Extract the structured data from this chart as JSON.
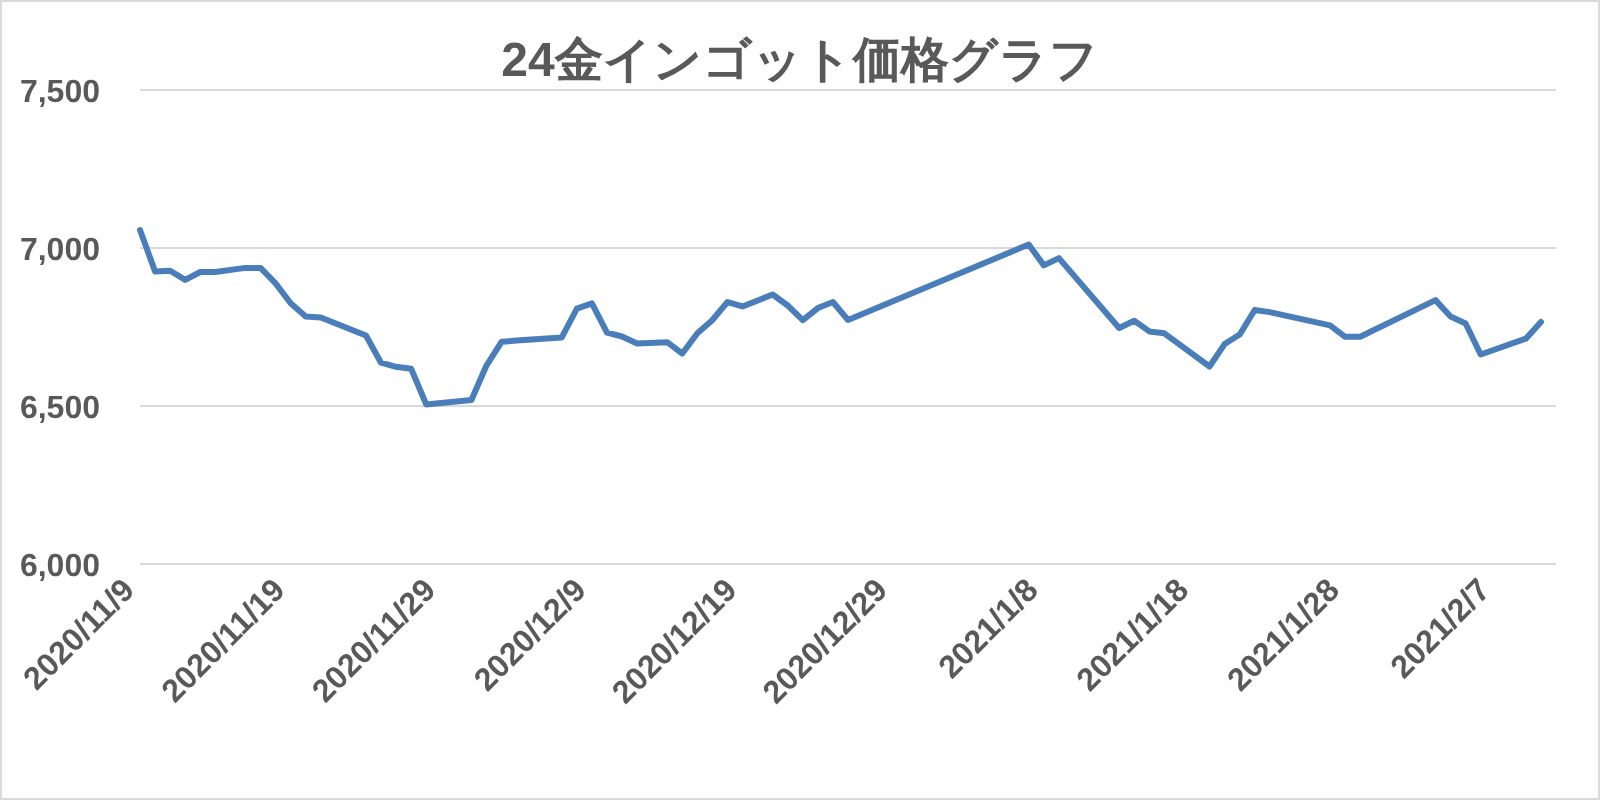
{
  "chart_data": {
    "type": "line",
    "title": "24金インゴット価格グラフ",
    "x": [
      "2020-11-09",
      "2020-11-10",
      "2020-11-11",
      "2020-11-12",
      "2020-11-13",
      "2020-11-14",
      "2020-11-16",
      "2020-11-17",
      "2020-11-18",
      "2020-11-19",
      "2020-11-20",
      "2020-11-21",
      "2020-11-24",
      "2020-11-25",
      "2020-11-26",
      "2020-11-27",
      "2020-11-28",
      "2020-12-01",
      "2020-12-02",
      "2020-12-03",
      "2020-12-04",
      "2020-12-07",
      "2020-12-08",
      "2020-12-09",
      "2020-12-10",
      "2020-12-11",
      "2020-12-12",
      "2020-12-14",
      "2020-12-15",
      "2020-12-16",
      "2020-12-17",
      "2020-12-18",
      "2020-12-19",
      "2020-12-21",
      "2020-12-22",
      "2020-12-23",
      "2020-12-24",
      "2020-12-25",
      "2020-12-26",
      "2021-01-07",
      "2021-01-08",
      "2021-01-09",
      "2021-01-13",
      "2021-01-14",
      "2021-01-15",
      "2021-01-16",
      "2021-01-19",
      "2021-01-20",
      "2021-01-21",
      "2021-01-22",
      "2021-01-23",
      "2021-01-27",
      "2021-01-28",
      "2021-01-29",
      "2021-02-03",
      "2021-02-04",
      "2021-02-05",
      "2021-02-06",
      "2021-02-09",
      "2021-02-10"
    ],
    "series": [
      {
        "color": "#4a7ebb",
        "values": [
          7057,
          6926,
          6928,
          6899,
          6924,
          6924,
          6937,
          6937,
          6888,
          6825,
          6783,
          6780,
          6723,
          6637,
          6624,
          6618,
          6505,
          6519,
          6628,
          6703,
          6707,
          6717,
          6808,
          6825,
          6732,
          6720,
          6698,
          6702,
          6666,
          6730,
          6772,
          6829,
          6815,
          6853,
          6818,
          6772,
          6810,
          6829,
          6772,
          7011,
          6945,
          6968,
          6747,
          6770,
          6736,
          6730,
          6625,
          6696,
          6726,
          6804,
          6797,
          6755,
          6719,
          6719,
          6835,
          6783,
          6761,
          6663,
          6713,
          6766
        ]
      }
    ],
    "xlim": [
      "2020-11-09",
      "2021-02-11"
    ],
    "xticks": [
      {
        "value": "2020-11-09",
        "label": "2020/11/9"
      },
      {
        "value": "2020-11-19",
        "label": "2020/11/19"
      },
      {
        "value": "2020-11-29",
        "label": "2020/11/29"
      },
      {
        "value": "2020-12-09",
        "label": "2020/12/9"
      },
      {
        "value": "2020-12-19",
        "label": "2020/12/19"
      },
      {
        "value": "2020-12-29",
        "label": "2020/12/29"
      },
      {
        "value": "2021-01-08",
        "label": "2021/1/8"
      },
      {
        "value": "2021-01-18",
        "label": "2021/1/18"
      },
      {
        "value": "2021-01-28",
        "label": "2021/1/28"
      },
      {
        "value": "2021-02-07",
        "label": "2021/2/7"
      }
    ],
    "ylim": [
      6000,
      7500
    ],
    "yticks": [
      {
        "value": 6000,
        "label": "6,000"
      },
      {
        "value": 6500,
        "label": "6,500"
      },
      {
        "value": 7000,
        "label": "7,000"
      },
      {
        "value": 7500,
        "label": "7,500"
      }
    ],
    "grid": "y",
    "marker": "none",
    "line_style": "solid"
  }
}
